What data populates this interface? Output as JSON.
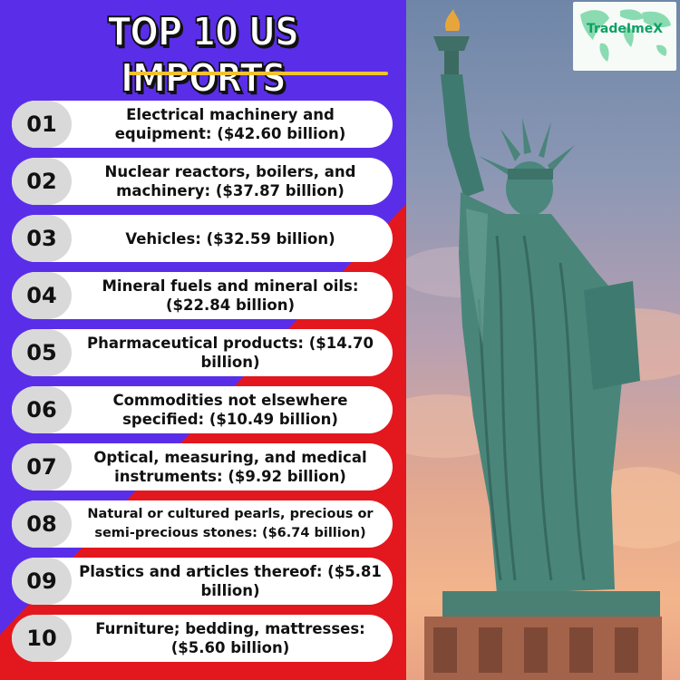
{
  "title": "TOP 10 US IMPORTS",
  "logo": {
    "text": "TradeImeX"
  },
  "items": [
    {
      "number": "01",
      "label": "Electrical machinery and equipment: ($42.60 billion)"
    },
    {
      "number": "02",
      "label": "Nuclear reactors, boilers, and machinery: ($37.87 billion)"
    },
    {
      "number": "03",
      "label": "Vehicles: ($32.59 billion)"
    },
    {
      "number": "04",
      "label": "Mineral fuels and mineral oils: ($22.84 billion)"
    },
    {
      "number": "05",
      "label": "Pharmaceutical products: ($14.70 billion)"
    },
    {
      "number": "06",
      "label": "Commodities not elsewhere specified: ($10.49 billion)"
    },
    {
      "number": "07",
      "label": "Optical, measuring, and medical instruments: ($9.92 billion)"
    },
    {
      "number": "08",
      "label": "Natural or cultured pearls, precious or semi-precious stones: ($6.74 billion)"
    },
    {
      "number": "09",
      "label": "Plastics and articles thereof: ($5.81 billion)"
    },
    {
      "number": "10",
      "label": "Furniture; bedding, mattresses: ($5.60 billion)"
    }
  ],
  "colors": {
    "purple": "#5a2ee8",
    "red": "#e3171e",
    "underline": "#f2c230",
    "logo_green": "#0fa064"
  }
}
